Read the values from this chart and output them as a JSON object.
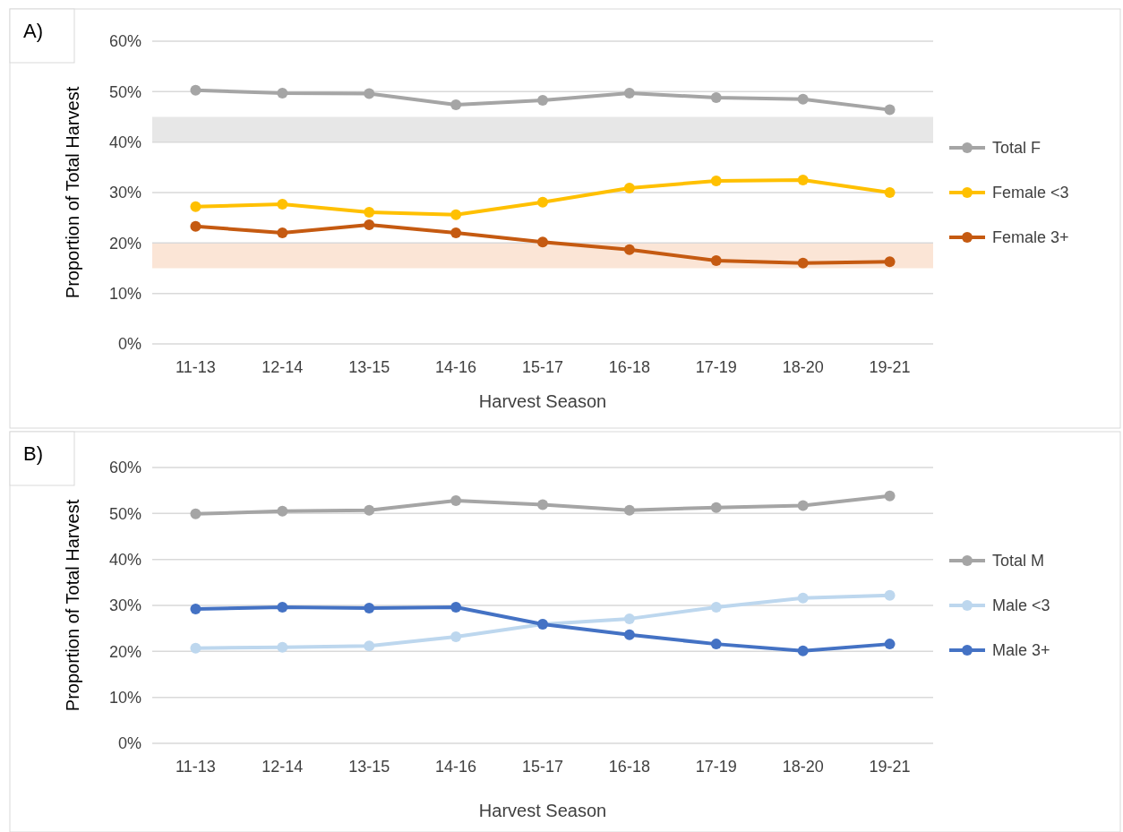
{
  "chart_data": [
    {
      "type": "line",
      "title": "A)",
      "xlabel": "Harvest Season",
      "ylabel": "Proportion of Total Harvest",
      "categories": [
        "11-13",
        "12-14",
        "13-15",
        "14-16",
        "15-17",
        "16-18",
        "17-19",
        "18-20",
        "19-21"
      ],
      "series": [
        {
          "name": "Total F",
          "color": "#a5a5a5",
          "values": [
            50.3,
            49.7,
            49.6,
            47.4,
            48.3,
            49.7,
            48.8,
            48.5,
            46.4
          ]
        },
        {
          "name": "Female <3",
          "color": "#ffc000",
          "values": [
            27.2,
            27.7,
            26.1,
            25.6,
            28.1,
            30.9,
            32.3,
            32.5,
            30.0
          ]
        },
        {
          "name": "Female 3+",
          "color": "#c55a11",
          "values": [
            23.3,
            22.0,
            23.6,
            22.0,
            20.2,
            18.7,
            16.5,
            16.0,
            16.3
          ]
        }
      ],
      "bands": [
        {
          "axis": "y",
          "from": 40,
          "to": 45,
          "color": "#e7e7e7"
        },
        {
          "axis": "y",
          "from": 15,
          "to": 20,
          "color": "#fbe5d6"
        }
      ],
      "ylim": [
        0,
        60
      ],
      "yticks": [
        {
          "value": 0,
          "label": "0%"
        },
        {
          "value": 10,
          "label": "10%"
        },
        {
          "value": 20,
          "label": "20%"
        },
        {
          "value": 30,
          "label": "30%"
        },
        {
          "value": 40,
          "label": "40%"
        },
        {
          "value": 50,
          "label": "50%"
        },
        {
          "value": 60,
          "label": "60%"
        }
      ],
      "grid": "y",
      "legend": "right",
      "marker": "circle",
      "line_style": "solid"
    },
    {
      "type": "line",
      "title": "B)",
      "xlabel": "Harvest Season",
      "ylabel": "Proportion of Total Harvest",
      "categories": [
        "11-13",
        "12-14",
        "13-15",
        "14-16",
        "15-17",
        "16-18",
        "17-19",
        "18-20",
        "19-21"
      ],
      "series": [
        {
          "name": "Total M",
          "color": "#a5a5a5",
          "values": [
            49.9,
            50.5,
            50.7,
            52.8,
            51.9,
            50.7,
            51.3,
            51.7,
            53.8
          ]
        },
        {
          "name": "Male <3",
          "color": "#bdd7ee",
          "values": [
            20.7,
            20.9,
            21.2,
            23.2,
            25.9,
            27.1,
            29.6,
            31.6,
            32.2
          ]
        },
        {
          "name": "Male 3+",
          "color": "#4472c4",
          "values": [
            29.2,
            29.6,
            29.4,
            29.6,
            25.9,
            23.6,
            21.6,
            20.1,
            21.6
          ]
        }
      ],
      "ylim": [
        0,
        60
      ],
      "yticks": [
        {
          "value": 0,
          "label": "0%"
        },
        {
          "value": 10,
          "label": "10%"
        },
        {
          "value": 20,
          "label": "20%"
        },
        {
          "value": 30,
          "label": "30%"
        },
        {
          "value": 40,
          "label": "40%"
        },
        {
          "value": 50,
          "label": "50%"
        },
        {
          "value": 60,
          "label": "60%"
        }
      ],
      "grid": "y",
      "legend": "right",
      "marker": "circle",
      "line_style": "solid"
    }
  ]
}
